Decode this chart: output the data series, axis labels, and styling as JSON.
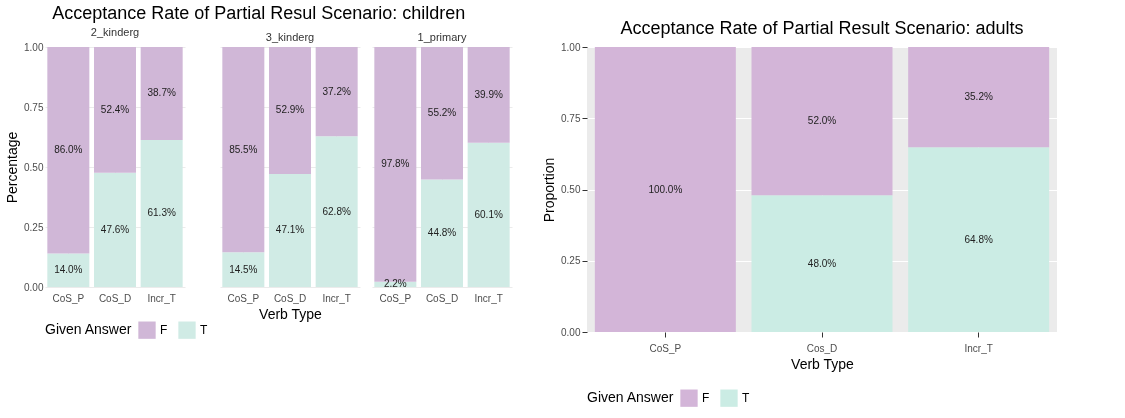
{
  "chart_data": [
    {
      "type": "bar",
      "title": "Acceptance Rate of Partial Resul Scenario: children",
      "subtitle": "2_kinderg",
      "ylabel": "Percentage",
      "legend_title": "Given Answer",
      "legend": "bottom",
      "categories": [
        "CoS_P",
        "CoS_D",
        "Incr_T"
      ],
      "stacked": true,
      "ylim": [
        0,
        1
      ],
      "yticks": [
        {
          "value": 0,
          "label": "0.00"
        },
        {
          "value": 0.25,
          "label": "0.25"
        },
        {
          "value": 0.5,
          "label": "0.50"
        },
        {
          "value": 0.75,
          "label": "0.75"
        },
        {
          "value": 1,
          "label": "1.00"
        }
      ],
      "grid": true,
      "series": [
        {
          "name": "T",
          "color": "#d0ebe5",
          "values": [
            0.14,
            0.476,
            0.613
          ],
          "value_labels": [
            "14.0%",
            "47.6%",
            "61.3%"
          ]
        },
        {
          "name": "F",
          "color": "#d0b7d7",
          "values": [
            0.86,
            0.524,
            0.387
          ],
          "value_labels": [
            "86.0%",
            "52.4%",
            "38.7%"
          ]
        }
      ]
    },
    {
      "type": "bar",
      "subtitle": "3_kinderg",
      "xlabel": "Verb Type",
      "tick_labels": "x",
      "categories": [
        "CoS_P",
        "CoS_D",
        "Incr_T"
      ],
      "stacked": true,
      "ylim": [
        0,
        1
      ],
      "yticks": [
        0,
        0.25,
        0.5,
        0.75,
        1
      ],
      "grid": true,
      "series": [
        {
          "color": "#d0ebe5",
          "values": [
            0.145,
            0.471,
            0.628
          ],
          "value_labels": [
            "14.5%",
            "47.1%",
            "62.8%"
          ]
        },
        {
          "color": "#d0b7d7",
          "values": [
            0.855,
            0.529,
            0.372
          ],
          "value_labels": [
            "85.5%",
            "52.9%",
            "37.2%"
          ]
        }
      ]
    },
    {
      "type": "bar",
      "subtitle": "1_primary",
      "tick_labels": "x",
      "categories": [
        "CoS_P",
        "CoS_D",
        "Incr_T"
      ],
      "stacked": true,
      "ylim": [
        0,
        1
      ],
      "yticks": [
        0,
        0.25,
        0.5,
        0.75,
        1
      ],
      "grid": true,
      "series": [
        {
          "color": "#d0ebe5",
          "values": [
            0.022,
            0.448,
            0.601
          ],
          "value_labels": [
            "2.2%",
            "44.8%",
            "60.1%"
          ]
        },
        {
          "color": "#d0b7d7",
          "values": [
            0.978,
            0.552,
            0.399
          ],
          "value_labels": [
            "97.8%",
            "55.2%",
            "39.9%"
          ]
        }
      ]
    },
    {
      "type": "bar",
      "title": "Acceptance Rate of Partial Result Scenario: adults",
      "xlabel": "Verb Type",
      "ylabel": "Proportion",
      "legend_title": "Given Answer",
      "legend": "bottom",
      "categories": [
        "CoS_P",
        "Cos_D",
        "Incr_T"
      ],
      "stacked": true,
      "ylim": [
        0,
        1
      ],
      "yticks": [
        {
          "value": 0,
          "label": "0.00"
        },
        {
          "value": 0.25,
          "label": "0.25"
        },
        {
          "value": 0.5,
          "label": "0.50"
        },
        {
          "value": 0.75,
          "label": "0.75"
        },
        {
          "value": 1,
          "label": "1.00"
        }
      ],
      "grid": true,
      "series": [
        {
          "name": "T",
          "color": "#cbece4",
          "values": [
            0.0,
            0.48,
            0.648
          ],
          "value_labels": [
            null,
            "48.0%",
            "64.8%"
          ]
        },
        {
          "name": "F",
          "color": "#d3b5d8",
          "values": [
            1.0,
            0.52,
            0.352
          ],
          "value_labels": [
            "100.0%",
            "52.0%",
            "35.2%"
          ]
        }
      ]
    }
  ]
}
